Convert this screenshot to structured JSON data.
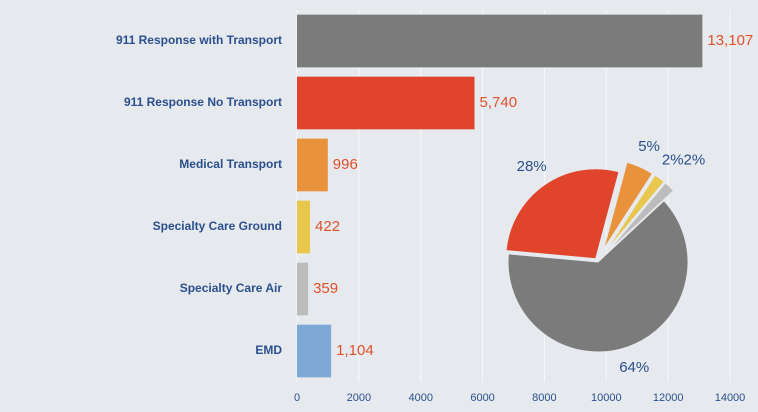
{
  "chart_data": [
    {
      "type": "hbar",
      "categories": [
        "911 Response with Transport",
        "911 Response No Transport",
        "Medical Transport",
        "Specialty Care Ground",
        "Specialty Care Air",
        "EMD"
      ],
      "values": [
        13107,
        5740,
        996,
        422,
        359,
        1104
      ],
      "value_labels": [
        "13,107",
        "5,740",
        "996",
        "422",
        "359",
        "1,104"
      ],
      "colors": [
        "#7b7b7b",
        "#e0452b",
        "#e8933c",
        "#e9c64c",
        "#bcbcbc",
        "#7ea9d6"
      ],
      "xlim": [
        0,
        14000
      ],
      "xticks": [
        0,
        2000,
        4000,
        6000,
        8000,
        10000,
        12000,
        14000
      ],
      "grid": true
    },
    {
      "type": "pie",
      "values": [
        5,
        2,
        2,
        64,
        28
      ],
      "value_labels": [
        "5%",
        "2%",
        "2%",
        "64%",
        "28%"
      ],
      "colors": [
        "#e8933c",
        "#e9c64c",
        "#bcbcbc",
        "#7b7b7b",
        "#e0452b"
      ]
    }
  ]
}
